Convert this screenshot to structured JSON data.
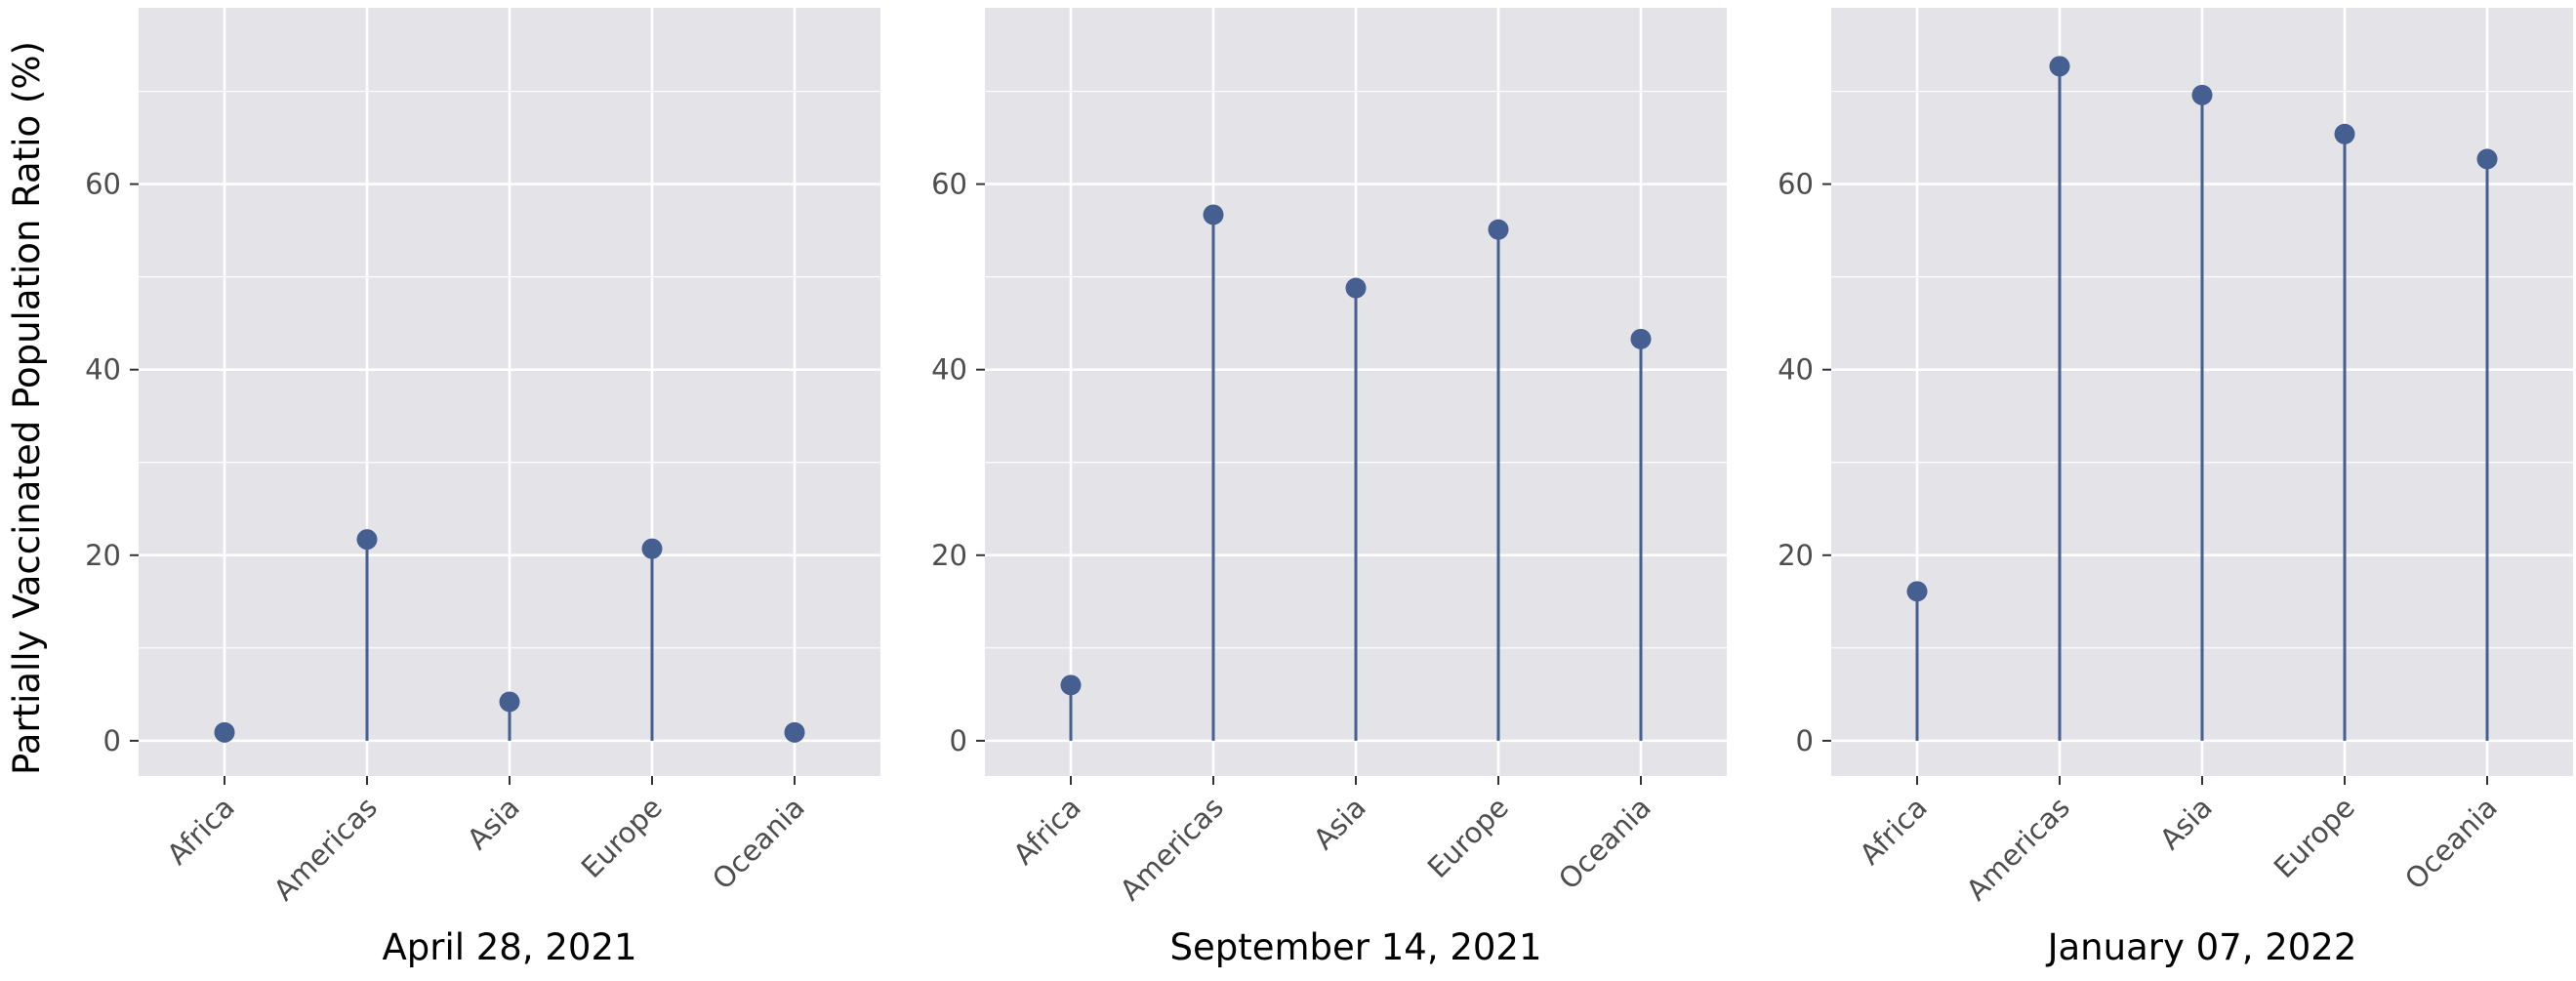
{
  "chart_data": {
    "type": "lollipop",
    "ylabel": "Partially Vaccinated Population Ratio (%)",
    "categories": [
      "Africa",
      "Americas",
      "Asia",
      "Europe",
      "Oceania"
    ],
    "ylim": [
      -3.8,
      79
    ],
    "yticks": [
      0,
      20,
      40,
      60
    ],
    "grid": true,
    "colors": {
      "series": "#455f90",
      "panel_bg": "#e3e3e8",
      "grid": "#ffffff"
    },
    "panels": [
      {
        "title": "April 28, 2021",
        "values": [
          0.9,
          21.7,
          4.2,
          20.7,
          0.9
        ]
      },
      {
        "title": "September 14, 2021",
        "values": [
          6.0,
          56.7,
          48.8,
          55.1,
          43.3
        ]
      },
      {
        "title": "January 07, 2022",
        "values": [
          16.1,
          72.7,
          69.6,
          65.4,
          62.7
        ]
      }
    ]
  }
}
